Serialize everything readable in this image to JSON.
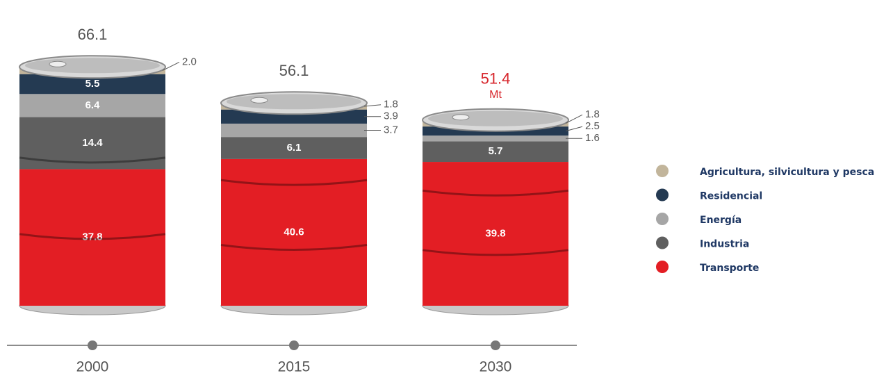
{
  "chart_data": {
    "type": "bar",
    "stacked": true,
    "categories": [
      "2000",
      "2015",
      "2030"
    ],
    "totals": [
      66.1,
      56.1,
      51.4
    ],
    "unit": "Mt",
    "series": [
      {
        "name": "Transporte",
        "color": "#e31e24",
        "values": [
          37.8,
          40.6,
          39.8
        ],
        "value_labels": [
          "37.8",
          "40.6",
          "39.8"
        ]
      },
      {
        "name": "Industria",
        "color": "#5f5f5f",
        "values": [
          14.4,
          6.1,
          5.7
        ],
        "value_labels": [
          "14.4",
          "6.1",
          "5.7"
        ]
      },
      {
        "name": "Energía",
        "color": "#a6a6a6",
        "values": [
          6.4,
          3.7,
          1.6
        ],
        "value_labels": [
          "6.4",
          "3.7",
          "1.6"
        ]
      },
      {
        "name": "Residencial",
        "color": "#243a52",
        "values": [
          5.5,
          3.9,
          2.5
        ],
        "value_labels": [
          "5.5",
          "3.9",
          "2.5"
        ]
      },
      {
        "name": "Agricultura, silvicultura y pesca",
        "color": "#c2b59b",
        "values": [
          2.0,
          1.8,
          1.8
        ],
        "value_labels": [
          "2.0",
          "1.8",
          "1.8"
        ]
      }
    ]
  }
}
